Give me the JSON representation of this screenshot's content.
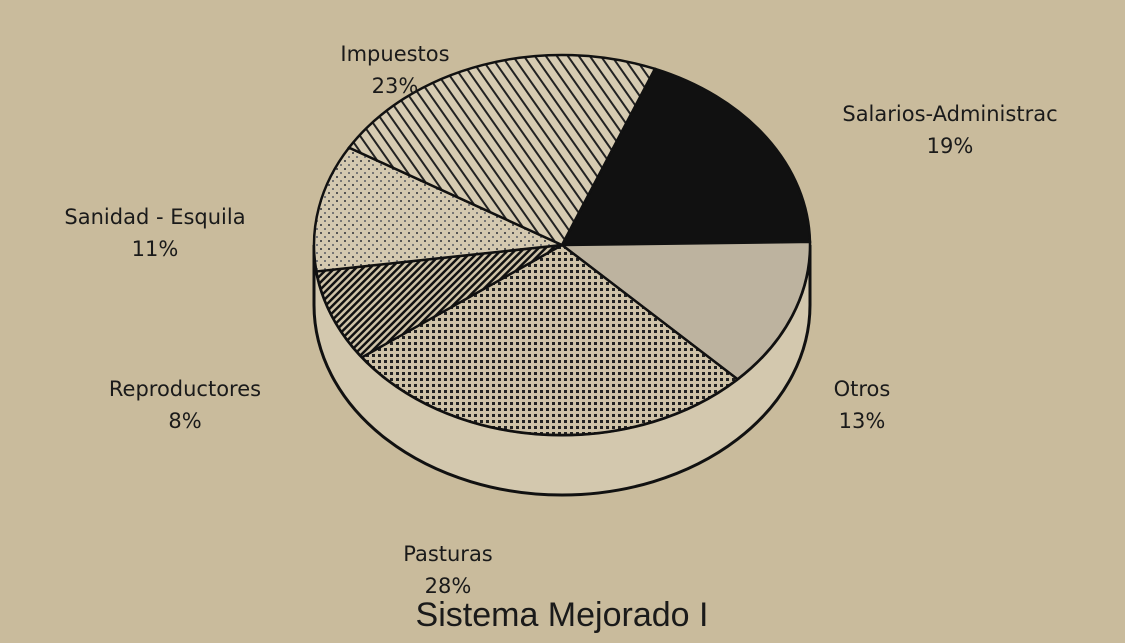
{
  "chart_data": {
    "type": "pie",
    "title": "Sistema Mejorado I",
    "categories": [
      "Salarios-Administrac",
      "Otros",
      "Pasturas",
      "Reproductores",
      "Sanidad - Esquila",
      "Impuestos"
    ],
    "values": [
      19,
      13,
      28,
      8,
      11,
      23
    ],
    "value_labels": [
      "19%",
      "13%",
      "28%",
      "8%",
      "11%",
      "23%"
    ]
  }
}
